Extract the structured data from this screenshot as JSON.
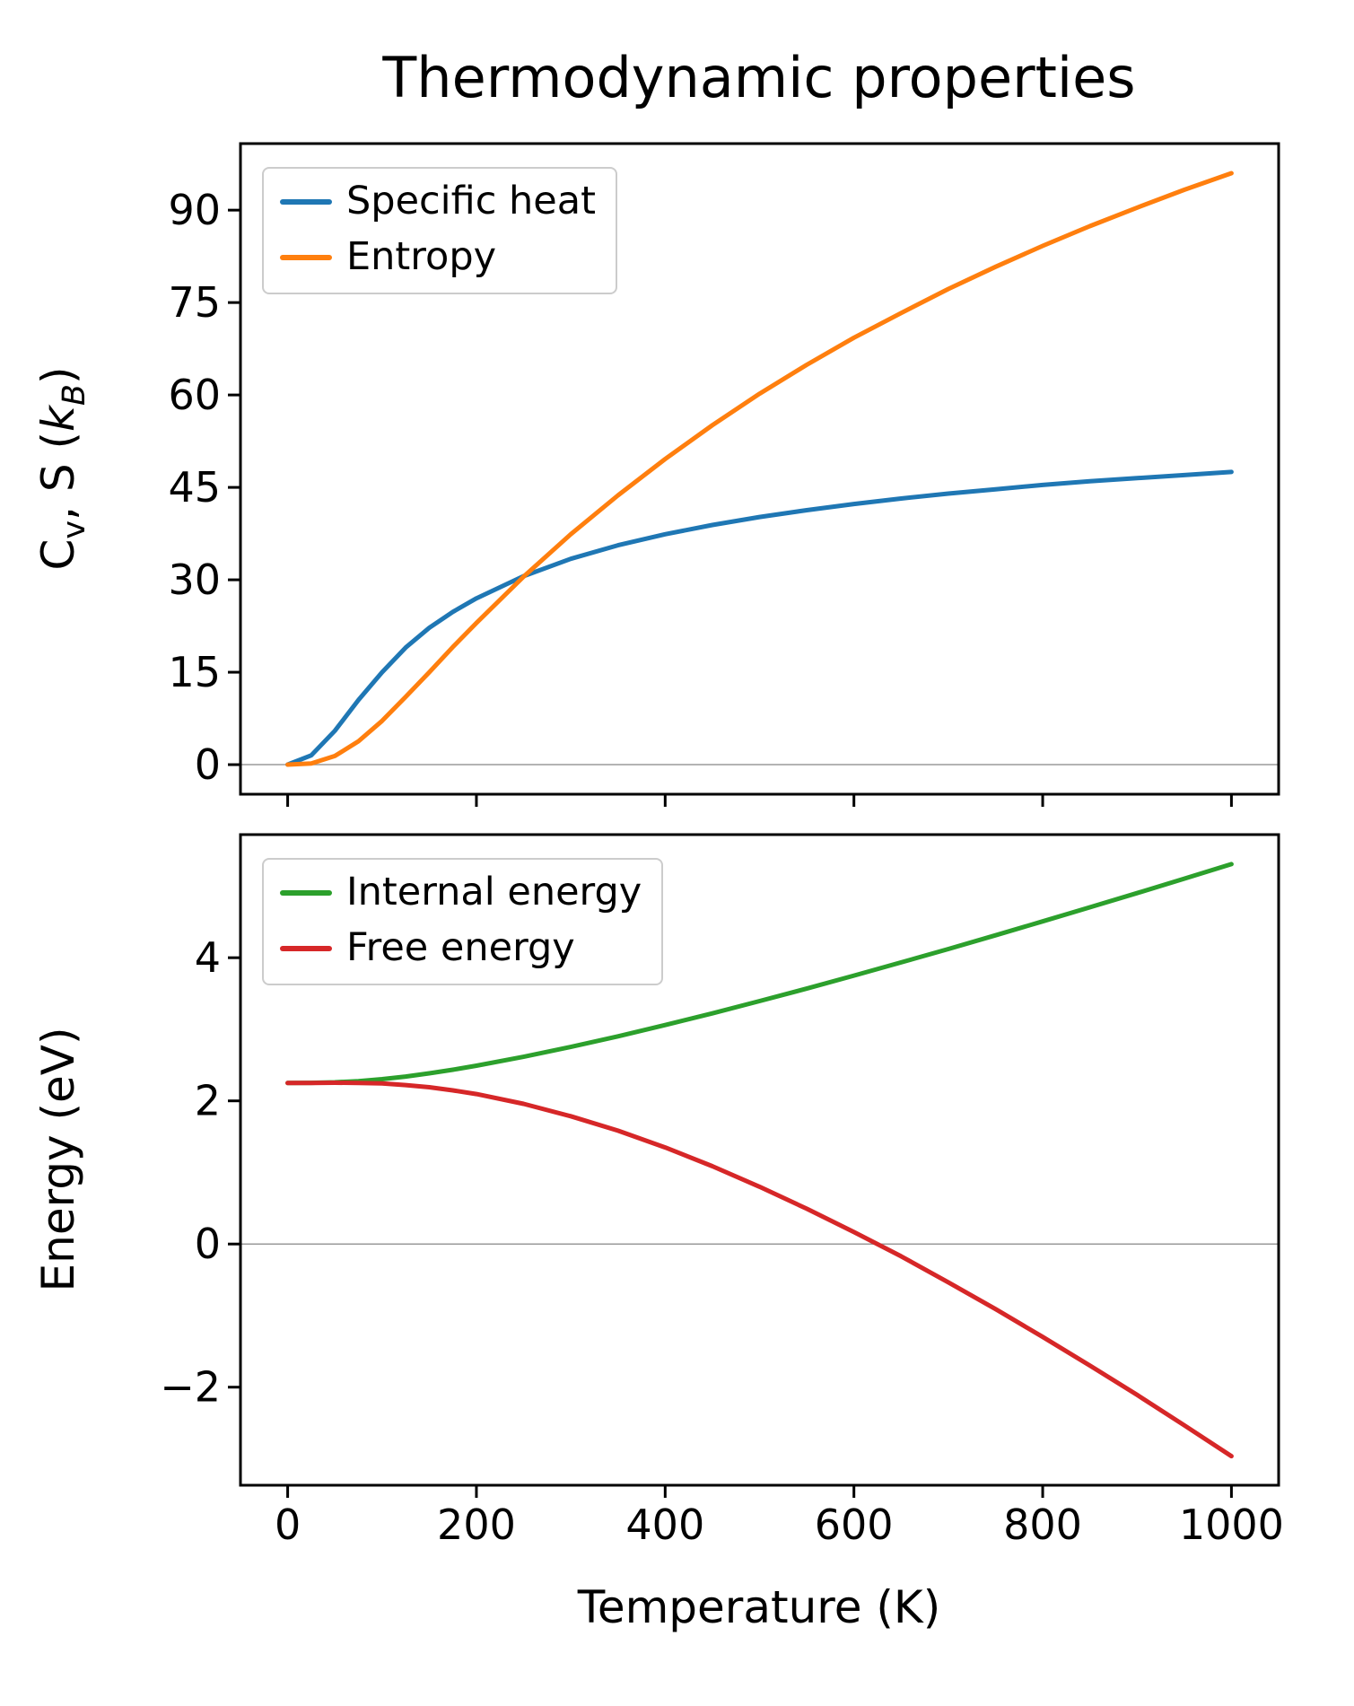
{
  "title": "Thermodynamic properties",
  "xlabel": "Temperature (K)",
  "colors": {
    "axis": "#000000",
    "zero_line": "#9a9a9a",
    "legend_border": "#cccccc",
    "background": "#ffffff",
    "specific_heat": "#1f77b4",
    "entropy": "#ff7f0e",
    "internal_energy": "#2ca02c",
    "free_energy": "#d62728"
  },
  "chart_data": [
    {
      "type": "line",
      "title": "",
      "ylabel": "Cv, S (kB)",
      "ylabel_parts": [
        {
          "text": "C"
        },
        {
          "text": "v",
          "sub": true
        },
        {
          "text": ", S ("
        },
        {
          "text": "k",
          "italic": true
        },
        {
          "text": "B",
          "sub": true,
          "italic": true
        },
        {
          "text": ")"
        }
      ],
      "x": [
        0,
        25,
        50,
        75,
        100,
        125,
        150,
        175,
        200,
        250,
        300,
        350,
        400,
        450,
        500,
        550,
        600,
        650,
        700,
        750,
        800,
        850,
        900,
        950,
        1000
      ],
      "series": [
        {
          "name": "Specific heat",
          "color": "#1f77b4",
          "values": [
            0,
            1.5,
            5.5,
            10.5,
            15.0,
            19.0,
            22.2,
            24.8,
            27.0,
            30.6,
            33.4,
            35.6,
            37.4,
            38.9,
            40.2,
            41.3,
            42.3,
            43.2,
            44.0,
            44.7,
            45.4,
            46.0,
            46.5,
            47.0,
            47.5
          ]
        },
        {
          "name": "Entropy",
          "color": "#ff7f0e",
          "values": [
            0,
            0.2,
            1.4,
            3.8,
            7.1,
            11.0,
            15.0,
            19.1,
            23.0,
            30.5,
            37.4,
            43.7,
            49.6,
            55.1,
            60.2,
            64.9,
            69.3,
            73.3,
            77.2,
            80.8,
            84.2,
            87.4,
            90.4,
            93.3,
            96.0
          ]
        }
      ],
      "xlim": [
        -50,
        1050
      ],
      "ylim": [
        -4.8,
        100.8
      ],
      "xticks": [
        0,
        200,
        400,
        600,
        800,
        1000
      ],
      "yticks": [
        0,
        15,
        30,
        45,
        60,
        75,
        90
      ],
      "x_tick_labels": false,
      "legend_position": "upper left",
      "grid": false,
      "zero_line": true
    },
    {
      "type": "line",
      "title": "",
      "ylabel": "Energy (eV)",
      "x": [
        0,
        25,
        50,
        75,
        100,
        125,
        150,
        175,
        200,
        250,
        300,
        350,
        400,
        450,
        500,
        550,
        600,
        650,
        700,
        750,
        800,
        850,
        900,
        950,
        1000
      ],
      "series": [
        {
          "name": "Internal energy",
          "color": "#2ca02c",
          "values": [
            2.25,
            2.252,
            2.259,
            2.276,
            2.304,
            2.34,
            2.385,
            2.435,
            2.491,
            2.615,
            2.753,
            2.902,
            3.059,
            3.223,
            3.394,
            3.569,
            3.75,
            3.934,
            4.122,
            4.313,
            4.507,
            4.704,
            4.903,
            5.104,
            5.308
          ]
        },
        {
          "name": "Free energy",
          "color": "#d62728",
          "values": [
            2.25,
            2.251,
            2.253,
            2.251,
            2.243,
            2.221,
            2.191,
            2.147,
            2.095,
            1.958,
            1.786,
            1.584,
            1.349,
            1.087,
            0.8,
            0.493,
            0.167,
            -0.171,
            -0.535,
            -0.909,
            -1.298,
            -1.697,
            -2.108,
            -2.533,
            -2.964
          ]
        }
      ],
      "xlim": [
        -50,
        1050
      ],
      "ylim": [
        -3.37,
        5.72
      ],
      "xticks": [
        0,
        200,
        400,
        600,
        800,
        1000
      ],
      "yticks": [
        -2,
        0,
        2,
        4
      ],
      "x_tick_labels": true,
      "legend_position": "upper left",
      "grid": false,
      "zero_line": true
    }
  ]
}
